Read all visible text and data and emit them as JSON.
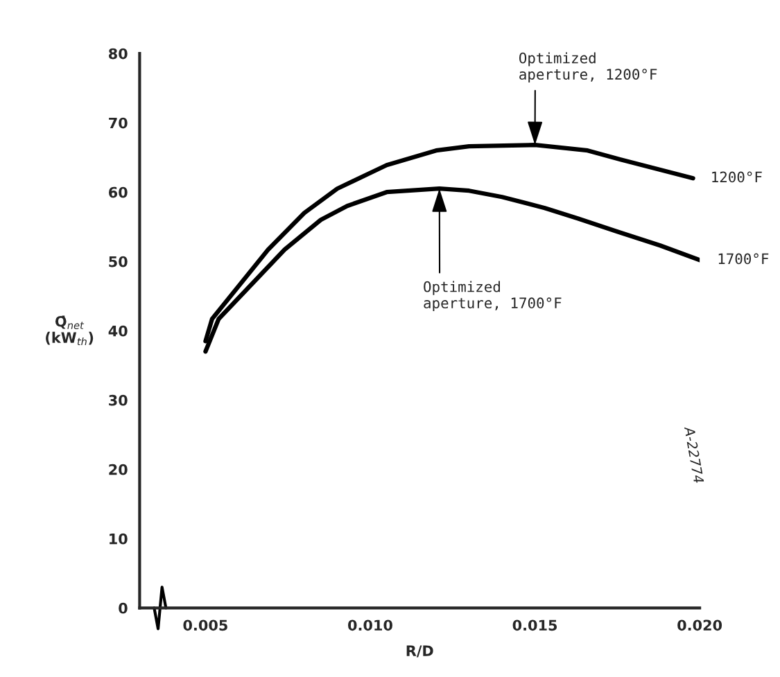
{
  "chart_data": {
    "type": "line",
    "xlabel": "R/D",
    "ylabel": "Q̇$_{net}$\n(kW$_{th}$)",
    "xlim": [
      0.003,
      0.02
    ],
    "xticks": [
      0.005,
      {
        "value": 0.01,
        "label": "0.010"
      },
      0.015,
      {
        "value": 0.02,
        "label": "0.020"
      }
    ],
    "ylim": [
      0,
      80
    ],
    "yticks": [
      0,
      10,
      20,
      30,
      40,
      50,
      60,
      70,
      80
    ],
    "grid": false,
    "legend": false,
    "marker": "none",
    "line_style": "solid",
    "series": [
      {
        "name": "1200°F",
        "color": "#000000",
        "x": [
          0.005,
          0.0052,
          0.0069,
          0.008,
          0.009,
          0.0105,
          0.012,
          0.013,
          0.015,
          0.0166,
          0.0176,
          0.0198
        ],
        "values": [
          38.5,
          41.7,
          51.7,
          57,
          60.5,
          63.9,
          66,
          66.6,
          66.8,
          66,
          64.7,
          62.0
        ]
      },
      {
        "name": "1700°F",
        "color": "#000000",
        "x": [
          0.005,
          0.0054,
          0.0074,
          0.0085,
          0.0093,
          0.0105,
          0.0121,
          0.013,
          0.014,
          0.0153,
          0.0163,
          0.0175,
          0.0188,
          0.02
        ],
        "values": [
          37,
          41.7,
          51.7,
          56,
          58,
          60,
          60.5,
          60.2,
          59.3,
          57.7,
          56.2,
          54.3,
          52.3,
          50.2
        ]
      }
    ],
    "annotations": [
      {
        "text": "Optimized\naperture, 1200°F",
        "x": 0.015,
        "y": 66.8
      },
      {
        "text": "Optimized\naperture, 1700°F",
        "x": 0.0121,
        "y": 60.5
      },
      "A-22774"
    ]
  }
}
